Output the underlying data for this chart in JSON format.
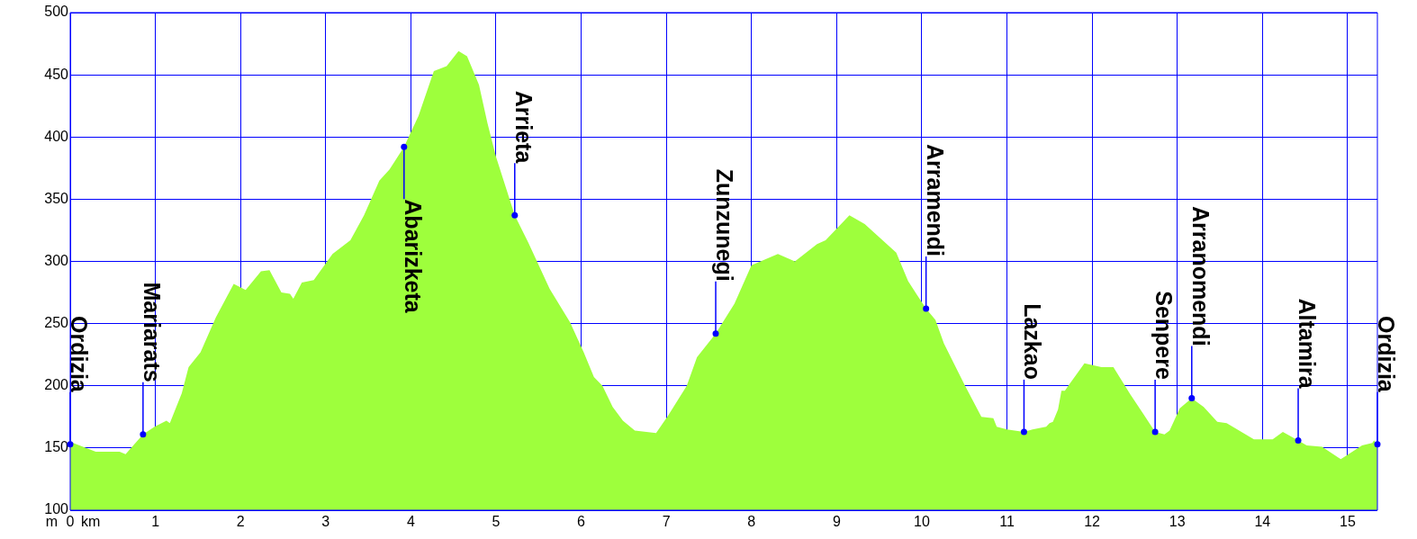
{
  "chart_data": {
    "type": "area",
    "xlabel": "km",
    "ylabel": "m",
    "x": [
      0,
      0.3,
      0.58,
      0.65,
      0.855,
      0.99,
      1.13,
      1.17,
      1.31,
      1.39,
      1.53,
      1.71,
      1.92,
      2.06,
      2.24,
      2.34,
      2.48,
      2.58,
      2.62,
      2.72,
      2.86,
      3.08,
      3.29,
      3.45,
      3.63,
      3.75,
      3.92,
      4.09,
      4.27,
      4.42,
      4.56,
      4.66,
      4.8,
      4.9,
      5.0,
      5.22,
      5.38,
      5.63,
      5.87,
      6.03,
      6.15,
      6.25,
      6.37,
      6.49,
      6.63,
      6.88,
      6.94,
      7.02,
      7.24,
      7.36,
      7.58,
      7.8,
      8.0,
      8.31,
      8.51,
      8.77,
      8.87,
      9.15,
      9.33,
      9.7,
      9.84,
      10.05,
      10.16,
      10.26,
      10.5,
      10.7,
      10.84,
      10.88,
      11.0,
      11.2,
      11.3,
      11.46,
      11.5,
      11.54,
      11.6,
      11.64,
      11.68,
      11.72,
      11.91,
      12.11,
      12.25,
      12.45,
      12.74,
      12.85,
      12.91,
      13.03,
      13.17,
      13.31,
      13.47,
      13.58,
      13.9,
      14.12,
      14.24,
      14.42,
      14.52,
      14.7,
      14.92,
      15.17,
      15.29,
      15.31,
      15.35
    ],
    "series": [
      {
        "color": "#9eff3c",
        "values": [
          155,
          147,
          147,
          145,
          161,
          167,
          172,
          170,
          194,
          215,
          227,
          255,
          282,
          277,
          292,
          293,
          275,
          274,
          270,
          283,
          285,
          306,
          317,
          337,
          365,
          374,
          392,
          417,
          453,
          457,
          469,
          465,
          442,
          411,
          384,
          337,
          315,
          278,
          251,
          227,
          207,
          200,
          183,
          172,
          164,
          162,
          168,
          176,
          200,
          223,
          242,
          266,
          297,
          306,
          300,
          314,
          317,
          337,
          330,
          307,
          284,
          262,
          253,
          234,
          201,
          175,
          174,
          167,
          165,
          163,
          165,
          167,
          170,
          171,
          181,
          196,
          196,
          200,
          218,
          215,
          215,
          193,
          163,
          161,
          164,
          182,
          190,
          183,
          171,
          170,
          157,
          157,
          163,
          156,
          152,
          151,
          141,
          152,
          154,
          156,
          153
        ]
      }
    ],
    "xlim": [
      0,
      15.35
    ],
    "xticks": [
      0,
      1,
      2,
      3,
      4,
      5,
      6,
      7,
      8,
      9,
      10,
      11,
      12,
      13,
      14,
      15
    ],
    "ylim": [
      100,
      500
    ],
    "yticks": [
      100,
      150,
      200,
      250,
      300,
      350,
      400,
      450,
      500
    ],
    "grid": true,
    "legend": false,
    "marker": "none",
    "annotations": [
      {
        "text": "Ordizia",
        "x": 0,
        "y": 153
      },
      {
        "text": "Mariarats",
        "x": 0.855,
        "y": 161
      },
      {
        "text": "Abarizketa",
        "x": 3.92,
        "y": 392
      },
      {
        "text": "Arrieta",
        "x": 5.22,
        "y": 337
      },
      {
        "text": "Zunzunegi",
        "x": 7.58,
        "y": 242
      },
      {
        "text": "Arramendi",
        "x": 10.05,
        "y": 262
      },
      {
        "text": "Lazkao",
        "x": 11.2,
        "y": 163
      },
      {
        "text": "Senpere",
        "x": 12.74,
        "y": 163
      },
      {
        "text": "Arranomendi",
        "x": 13.17,
        "y": 190
      },
      {
        "text": "Altamira",
        "x": 14.42,
        "y": 156
      },
      {
        "text": "Ordizia",
        "x": 15.35,
        "y": 153
      }
    ]
  }
}
